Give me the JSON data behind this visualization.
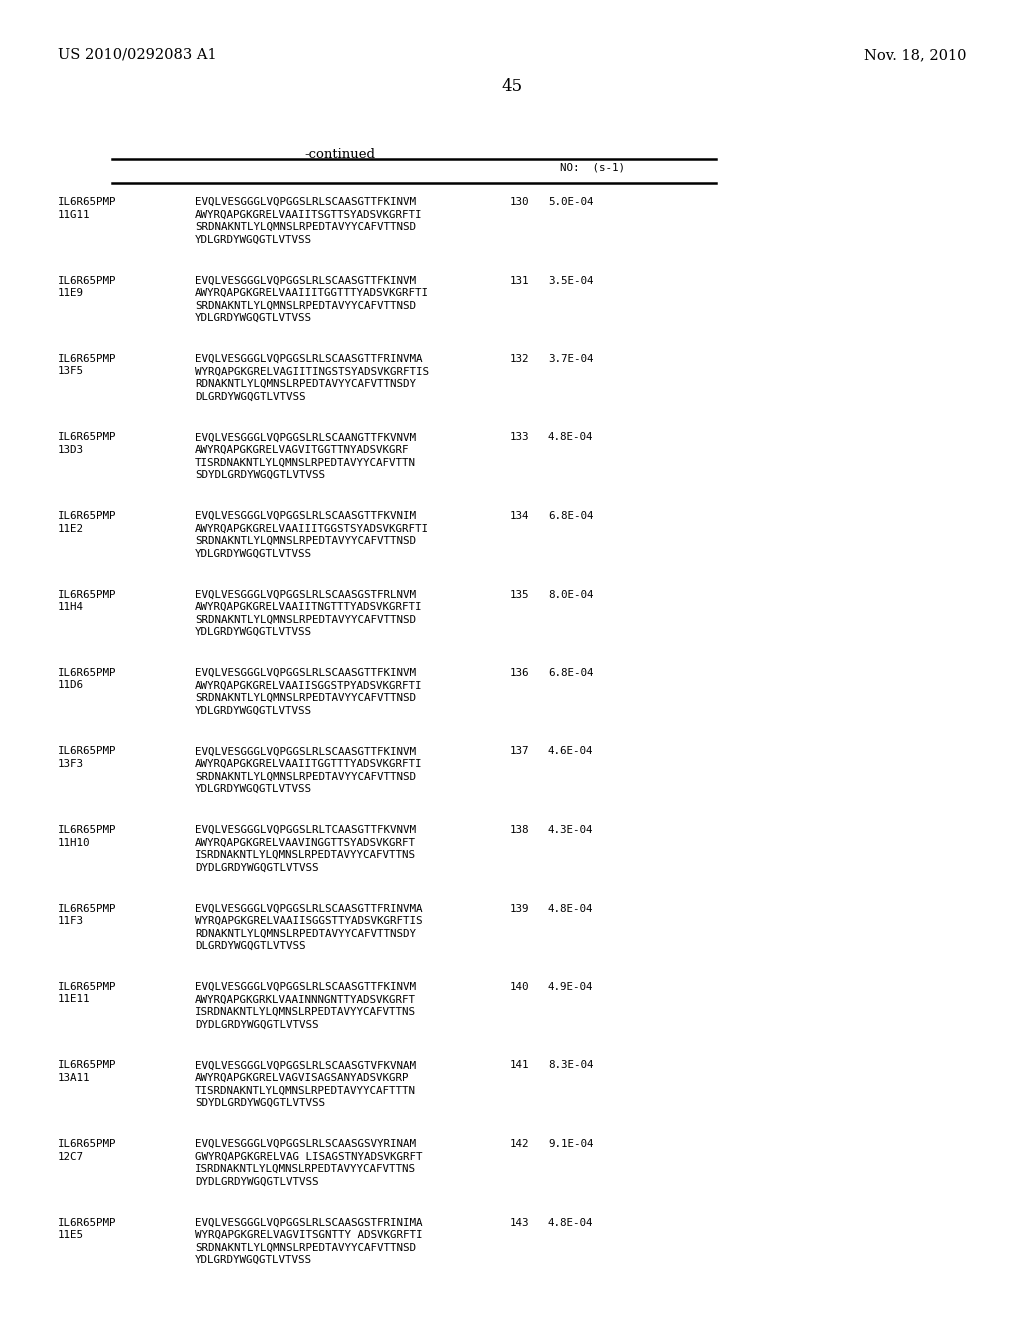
{
  "header_left": "US 2010/0292083 A1",
  "header_right": "Nov. 18, 2010",
  "page_number": "45",
  "continued_label": "-continued",
  "column_header": "NO:  (s-1)",
  "background_color": "#ffffff",
  "entries": [
    {
      "label1": "IL6R65PMP",
      "label2": "11G11",
      "seq_no": "130",
      "kd": "5.0E-04",
      "lines": [
        "EVQLVESGGGLVQPGGSLRLSCAASGTTFKINVM",
        "AWYRQAPGKGRELVAAIITSGTTSYADSVKGRFTI",
        "SRDNAKNTLYLQMNSLRPEDTAVYYCAFVTTNSD",
        "YDLGRDYWGQGTLVTVSS"
      ]
    },
    {
      "label1": "IL6R65PMP",
      "label2": "11E9",
      "seq_no": "131",
      "kd": "3.5E-04",
      "lines": [
        "EVQLVESGGGLVQPGGSLRLSCAASGTTFKINVM",
        "AWYRQAPGKGRELVAAIIITGGTTTYADSVKGRFTI",
        "SRDNAKNTLYLQMNSLRPEDTAVYYCAFVTTNSD",
        "YDLGRDYWGQGTLVTVSS"
      ]
    },
    {
      "label1": "IL6R65PMP",
      "label2": "13F5",
      "seq_no": "132",
      "kd": "3.7E-04",
      "lines": [
        "EVQLVESGGGLVQPGGSLRLSCAASGTTFRINVMA",
        "WYRQAPGKGRELVAGIITINGSTSYADSVKGRFTIS",
        "RDNAKNTLYLQMNSLRPEDTAVYYCAFVTTNSDY",
        "DLGRDYWGQGTLVTVSS"
      ]
    },
    {
      "label1": "IL6R65PMP",
      "label2": "13D3",
      "seq_no": "133",
      "kd": "4.8E-04",
      "lines": [
        "EVQLVESGGGLVQPGGSLRLSCAANGTTFKVNVM",
        "AWYRQAPGKGRELVAGVITGGTTNYADSVKGRF",
        "TISRDNAKNTLYLQMNSLRPEDTAVYYCAFVTTN",
        "SDYDLGRDYWGQGTLVTVSS"
      ]
    },
    {
      "label1": "IL6R65PMP",
      "label2": "11E2",
      "seq_no": "134",
      "kd": "6.8E-04",
      "lines": [
        "EVQLVESGGGLVQPGGSLRLSCAASGTTFKVNIM",
        "AWYRQAPGKGRELVAAIIITGGSTSYADSVKGRFTI",
        "SRDNAKNTLYLQMNSLRPEDTAVYYCAFVTTNSD",
        "YDLGRDYWGQGTLVTVSS"
      ]
    },
    {
      "label1": "IL6R65PMP",
      "label2": "11H4",
      "seq_no": "135",
      "kd": "8.0E-04",
      "lines": [
        "EVQLVESGGGLVQPGGSLRLSCAASGSTFRLNVM",
        "AWYRQAPGKGRELVAAIITNGTTTYADSVKGRFTI",
        "SRDNAKNTLYLQMNSLRPEDTAVYYCAFVTTNSD",
        "YDLGRDYWGQGTLVTVSS"
      ]
    },
    {
      "label1": "IL6R65PMP",
      "label2": "11D6",
      "seq_no": "136",
      "kd": "6.8E-04",
      "lines": [
        "EVQLVESGGGLVQPGGSLRLSCAASGTTFKINVM",
        "AWYRQAPGKGRELVAAIISGGSTPYADSVKGRFTI",
        "SRDNAKNTLYLQMNSLRPEDTAVYYCAFVTTNSD",
        "YDLGRDYWGQGTLVTVSS"
      ]
    },
    {
      "label1": "IL6R65PMP",
      "label2": "13F3",
      "seq_no": "137",
      "kd": "4.6E-04",
      "lines": [
        "EVQLVESGGGLVQPGGSLRLSCAASGTTFKINVM",
        "AWYRQAPGKGRELVAAIITGGTTTYADSVKGRFTI",
        "SRDNAKNTLYLQMNSLRPEDTAVYYCAFVTTNSD",
        "YDLGRDYWGQGTLVTVSS"
      ]
    },
    {
      "label1": "IL6R65PMP",
      "label2": "11H10",
      "seq_no": "138",
      "kd": "4.3E-04",
      "lines": [
        "EVQLVESGGGLVQPGGSLRLTCAASGTTFKVNVM",
        "AWYRQAPGKGRELVAAVINGGTTSYADSVKGRFT",
        "ISRDNAKNTLYLQMNSLRPEDTAVYYCAFVTTNS",
        "DYDLGRDYWGQGTLVTVSS"
      ]
    },
    {
      "label1": "IL6R65PMP",
      "label2": "11F3",
      "seq_no": "139",
      "kd": "4.8E-04",
      "lines": [
        "EVQLVESGGGLVQPGGSLRLSCAASGTTFRINVMA",
        "WYRQAPGKGRELVAAIISGGSTTYADSVKGRFTIS",
        "RDNAKNTLYLQMNSLRPEDTAVYYCAFVTTNSDY",
        "DLGRDYWGQGTLVTVSS"
      ]
    },
    {
      "label1": "IL6R65PMP",
      "label2": "11E11",
      "seq_no": "140",
      "kd": "4.9E-04",
      "lines": [
        "EVQLVESGGGLVQPGGSLRLSCAASGTTFKINVM",
        "AWYRQAPGKGRKLVAAINNNGNTTYADSVKGRFT",
        "ISRDNAKNTLYLQMNSLRPEDTAVYYCAFVTTNS",
        "DYDLGRDYWGQGTLVTVSS"
      ]
    },
    {
      "label1": "IL6R65PMP",
      "label2": "13A11",
      "seq_no": "141",
      "kd": "8.3E-04",
      "lines": [
        "EVQLVESGGGLVQPGGSLRLSCAASGTVFKVNAM",
        "AWYRQAPGKGRELVAGVISAGSANYADSVKGRP",
        "TISRDNAKNTLYLQMNSLRPEDTAVYYCAFTTTN",
        "SDYDLGRDYWGQGTLVTVSS"
      ]
    },
    {
      "label1": "IL6R65PMP",
      "label2": "12C7",
      "seq_no": "142",
      "kd": "9.1E-04",
      "lines": [
        "EVQLVESGGGLVQPGGSLRLSCAASGSVYRINAM",
        "GWYRQAPGKGRELVAG LISAGSTNYADSVKGRFT",
        "ISRDNAKNTLYLQMNSLRPEDTAVYYCAFVTTNS",
        "DYDLGRDYWGQGTLVTVSS"
      ]
    },
    {
      "label1": "IL6R65PMP",
      "label2": "11E5",
      "seq_no": "143",
      "kd": "4.8E-04",
      "lines": [
        "EVQLVESGGGLVQPGGSLRLSCAASGSTFRINIMA",
        "WYRQAPGKGRELVAGVITSGNTTY ADSVKGRFTI",
        "SRDNAKNTLYLQMNSLRPEDTAVYYCAFVTTNSD",
        "YDLGRDYWGQGTLVTVSS"
      ]
    }
  ]
}
